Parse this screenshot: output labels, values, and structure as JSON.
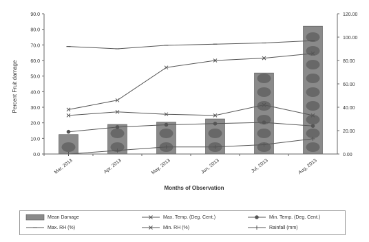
{
  "chart_data": {
    "type": "bar",
    "categories": [
      "Mar, 2013",
      "Apr, 2013",
      "May, 2013",
      "Jun, 2013",
      "Jul, 2013",
      "Aug, 2013"
    ],
    "xlabel": "Months of Observation",
    "ylabel": "Percent Fruit damage",
    "ylim": [
      0,
      90
    ],
    "y2lim": [
      0,
      120
    ],
    "y_ticks": [
      "0.0",
      "10.0",
      "20.0",
      "30.0",
      "40.0",
      "50.0",
      "60.0",
      "70.0",
      "80.0",
      "90.0"
    ],
    "y2_ticks": [
      "0.00",
      "20.00",
      "40.00",
      "60.00",
      "80.00",
      "100.00",
      "120.00"
    ],
    "series": [
      {
        "name": "Mean Damage",
        "type": "bar",
        "axis": "left",
        "values": [
          12.5,
          19.0,
          20.5,
          22.5,
          52.0,
          82.0
        ]
      },
      {
        "name": "Max. Temp. (Deg. Cent.)",
        "type": "line",
        "axis": "right",
        "marker": "x",
        "values": [
          33,
          36,
          34,
          33,
          42,
          33
        ]
      },
      {
        "name": "Min. Temp. (Deg. Cent.)",
        "type": "line",
        "axis": "right",
        "marker": "circle",
        "values": [
          19,
          23,
          25,
          26,
          27,
          24
        ]
      },
      {
        "name": "Max. RH (%)",
        "type": "line",
        "axis": "right",
        "marker": "dash",
        "values": [
          92,
          90,
          93,
          94,
          95,
          97
        ]
      },
      {
        "name": "Min. RH (%)",
        "type": "line",
        "axis": "right",
        "marker": "x",
        "values": [
          38,
          46,
          74,
          80,
          82,
          86
        ]
      },
      {
        "name": "Rainfall (mm)",
        "type": "line",
        "axis": "right",
        "marker": "plus",
        "values": [
          0,
          3,
          6,
          6,
          8,
          13
        ]
      }
    ],
    "legend_position": "bottom",
    "grid": false
  },
  "colors": {
    "bar_fill": "#8a8a8a",
    "bar_blob": "#5a5a5a",
    "line": "#555555",
    "axis": "#666666"
  }
}
